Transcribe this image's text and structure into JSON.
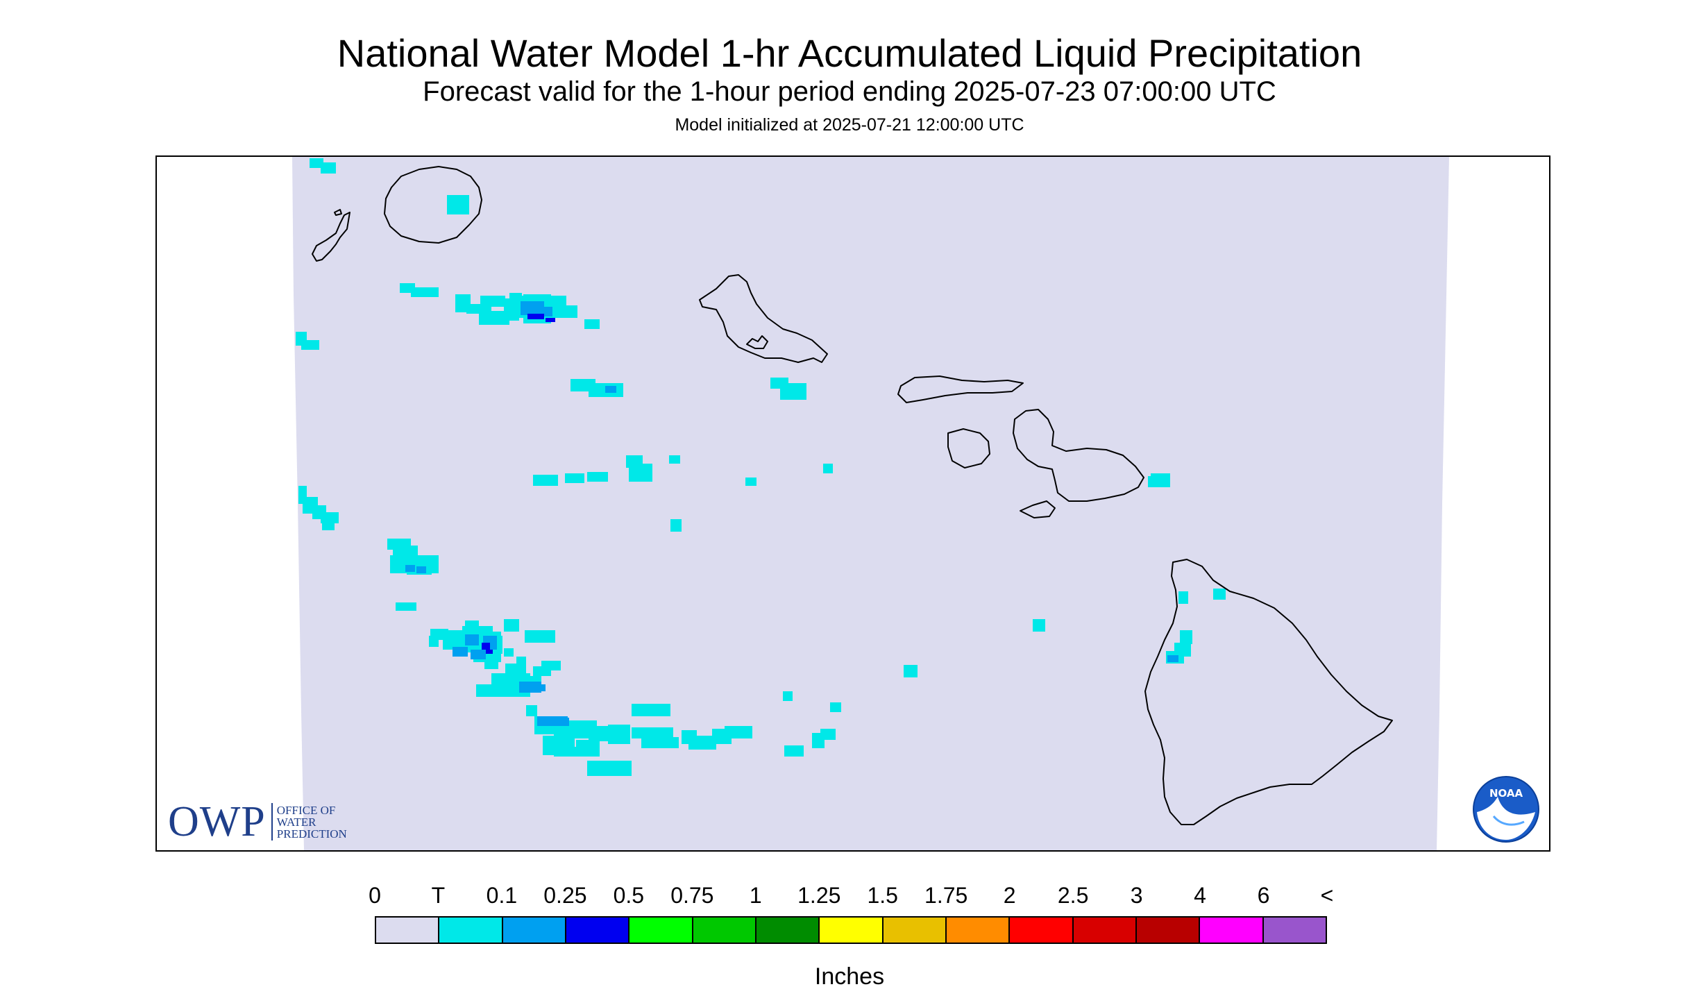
{
  "header": {
    "title": "National Water Model 1-hr Accumulated Liquid Precipitation",
    "subtitle": "Forecast valid for the 1-hour period ending 2025-07-23 07:00:00 UTC",
    "init": "Model initialized at 2025-07-21 12:00:00 UTC"
  },
  "logos": {
    "owp_main": "OWP",
    "owp_line1": "OFFICE OF",
    "owp_line2": "WATER",
    "owp_line3": "PREDICTION",
    "noaa": "NOAA"
  },
  "map": {
    "region": "Hawaii",
    "domain_fill": "#dcdcef",
    "outline_color": "#000000"
  },
  "legend": {
    "labels": [
      "0",
      "T",
      "0.1",
      "0.25",
      "0.5",
      "0.75",
      "1",
      "1.25",
      "1.5",
      "1.75",
      "2",
      "2.5",
      "3",
      "4",
      "6",
      "<"
    ],
    "colors": [
      "#dcdcef",
      "#00e8e8",
      "#00a0f0",
      "#0000f0",
      "#00ff00",
      "#00c800",
      "#008c00",
      "#ffff00",
      "#e8c000",
      "#ff8c00",
      "#ff0000",
      "#d80000",
      "#b80000",
      "#ff00ff",
      "#9955cc"
    ],
    "units": "Inches"
  }
}
